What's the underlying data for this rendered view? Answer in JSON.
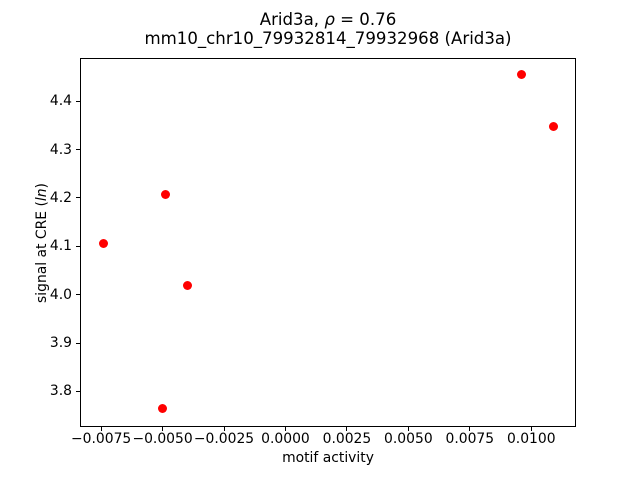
{
  "figure": {
    "title_line1": {
      "prefix": "Arid3a, ",
      "rho": "ρ",
      "suffix": " = 0.76"
    },
    "title_line2": "mm10_chr10_79932814_79932968 (Arid3a)",
    "xlabel": "motif activity",
    "ylabel": {
      "prefix": "signal at CRE (",
      "italic": "ln",
      "suffix": ")"
    },
    "background_color": "#ffffff",
    "spine_color": "#000000",
    "text_color": "#000000"
  },
  "chart_data": {
    "type": "scatter",
    "title": "Arid3a, ρ = 0.76",
    "subtitle": "mm10_chr10_79932814_79932968 (Arid3a)",
    "xlabel": "motif activity",
    "ylabel": "signal at CRE (ln)",
    "marker_color": "#ff0000",
    "marker_shape": "circle",
    "grid": false,
    "legend": null,
    "xlim": [
      -0.00836,
      0.01182
    ],
    "ylim": [
      3.726,
      4.49
    ],
    "xticks": [
      -0.0075,
      -0.005,
      -0.0025,
      0.0,
      0.0025,
      0.005,
      0.0075,
      0.01
    ],
    "xtick_labels": [
      "−0.0075",
      "−0.0050",
      "−0.0025",
      "0.0000",
      "0.0025",
      "0.0050",
      "0.0075",
      "0.0100"
    ],
    "yticks": [
      3.8,
      3.9,
      4.0,
      4.1,
      4.2,
      4.3,
      4.4
    ],
    "ytick_labels": [
      "3.8",
      "3.9",
      "4.0",
      "4.1",
      "4.2",
      "4.3",
      "4.4"
    ],
    "points": [
      {
        "x": -0.0074,
        "y": 4.105
      },
      {
        "x": -0.0049,
        "y": 4.207
      },
      {
        "x": -0.005,
        "y": 3.764
      },
      {
        "x": -0.004,
        "y": 4.018
      },
      {
        "x": 0.0096,
        "y": 4.456
      },
      {
        "x": 0.0109,
        "y": 4.347
      }
    ]
  }
}
